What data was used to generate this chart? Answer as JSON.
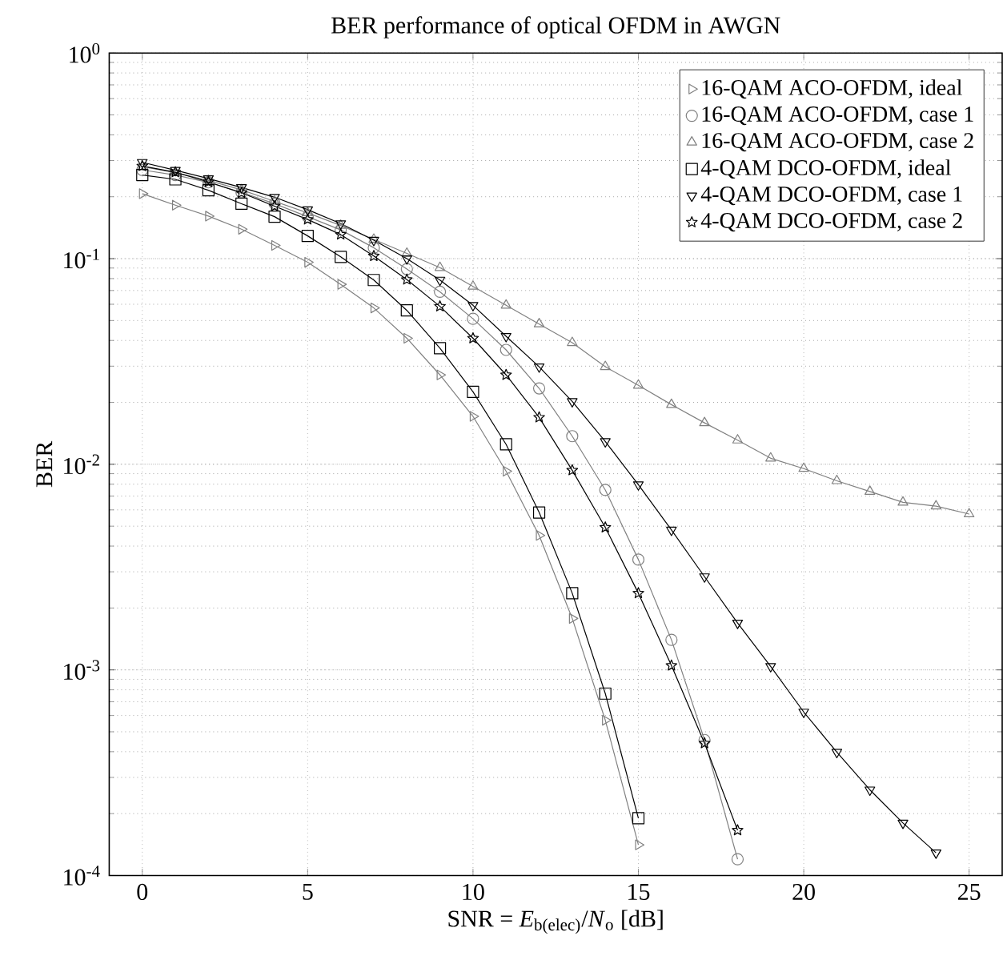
{
  "chart_data": {
    "type": "line",
    "title": "BER performance of optical OFDM in AWGN",
    "xlabel": "SNR = *E*$_{b(elec)}$/*N*$_{o}$ [dB]",
    "ylabel": "BER",
    "log": "y",
    "grid": true,
    "legend": "top right",
    "xlim": [
      -1,
      26
    ],
    "xticks": [
      0,
      5,
      10,
      15,
      20,
      25
    ],
    "ylim": [
      0.0001,
      1
    ],
    "yticks": [
      {
        "value": 0.0001,
        "label": "10$^{-4}$"
      },
      {
        "value": 0.001,
        "label": "10$^{-3}$"
      },
      {
        "value": 0.01,
        "label": "10$^{-2}$"
      },
      {
        "value": 0.1,
        "label": "10$^{-1}$"
      },
      {
        "value": 1,
        "label": "10$^{0}$"
      }
    ],
    "series": [
      {
        "name": "16-QAM ACO-OFDM, ideal",
        "color": "#808080",
        "marker": "triangle-right",
        "x": [
          0,
          1,
          2,
          3,
          4,
          5,
          6,
          7,
          8,
          9,
          10,
          11,
          12,
          13,
          14,
          15
        ],
        "values": [
          0.207,
          0.182,
          0.161,
          0.139,
          0.116,
          0.096,
          0.075,
          0.0576,
          0.041,
          0.0272,
          0.0171,
          0.00925,
          0.00451,
          0.00178,
          0.000569,
          0.000141
        ]
      },
      {
        "name": "16-QAM ACO-OFDM, case 1",
        "color": "#808080",
        "marker": "circle",
        "x": [
          0,
          1,
          2,
          3,
          4,
          5,
          6,
          7,
          8,
          9,
          10,
          11,
          12,
          13,
          14,
          15,
          16,
          17,
          18
        ],
        "values": [
          0.27,
          0.255,
          0.235,
          0.21,
          0.185,
          0.16,
          0.138,
          0.113,
          0.089,
          0.069,
          0.051,
          0.036,
          0.0234,
          0.0137,
          0.0075,
          0.00344,
          0.0014,
          0.000456,
          0.00012
        ]
      },
      {
        "name": "16-QAM ACO-OFDM, case 2",
        "color": "#808080",
        "marker": "triangle",
        "x": [
          0,
          1,
          2,
          3,
          4,
          5,
          6,
          7,
          8,
          9,
          10,
          11,
          12,
          13,
          14,
          15,
          16,
          17,
          18,
          19,
          20,
          21,
          22,
          23,
          24,
          25
        ],
        "values": [
          0.28,
          0.262,
          0.24,
          0.216,
          0.19,
          0.167,
          0.145,
          0.124,
          0.106,
          0.0904,
          0.0733,
          0.0593,
          0.0481,
          0.039,
          0.0298,
          0.0242,
          0.0195,
          0.0159,
          0.0131,
          0.0107,
          0.00953,
          0.00831,
          0.00737,
          0.00653,
          0.00626,
          0.00573
        ]
      },
      {
        "name": "4-QAM DCO-OFDM, ideal",
        "color": "#000000",
        "marker": "square",
        "x": [
          0,
          1,
          2,
          3,
          4,
          5,
          6,
          7,
          8,
          9,
          10,
          11,
          12,
          13,
          14,
          15
        ],
        "values": [
          0.255,
          0.243,
          0.215,
          0.185,
          0.16,
          0.129,
          0.102,
          0.0787,
          0.056,
          0.0367,
          0.0225,
          0.0125,
          0.00583,
          0.00236,
          0.000767,
          0.00019
        ]
      },
      {
        "name": "4-QAM DCO-OFDM, case 1",
        "color": "#000000",
        "marker": "triangle-down",
        "x": [
          0,
          1,
          2,
          3,
          4,
          5,
          6,
          7,
          8,
          9,
          10,
          11,
          12,
          13,
          14,
          15,
          16,
          17,
          18,
          19,
          20,
          21,
          22,
          23,
          24
        ],
        "values": [
          0.294,
          0.269,
          0.245,
          0.222,
          0.199,
          0.173,
          0.148,
          0.123,
          0.1,
          0.0787,
          0.0593,
          0.0419,
          0.0298,
          0.0202,
          0.0129,
          0.00796,
          0.00479,
          0.00284,
          0.00169,
          0.00104,
          0.000624,
          0.000398,
          0.000261,
          0.00018,
          0.000129
        ]
      },
      {
        "name": "4-QAM DCO-OFDM, case 2",
        "color": "#000000",
        "marker": "star",
        "x": [
          0,
          1,
          2,
          3,
          4,
          5,
          6,
          7,
          8,
          9,
          10,
          11,
          12,
          13,
          14,
          15,
          16,
          17,
          18
        ],
        "values": [
          0.282,
          0.263,
          0.236,
          0.209,
          0.18,
          0.155,
          0.131,
          0.103,
          0.0791,
          0.0586,
          0.041,
          0.0272,
          0.0169,
          0.00935,
          0.00493,
          0.00236,
          0.00105,
          0.00044,
          0.000166
        ]
      }
    ]
  }
}
